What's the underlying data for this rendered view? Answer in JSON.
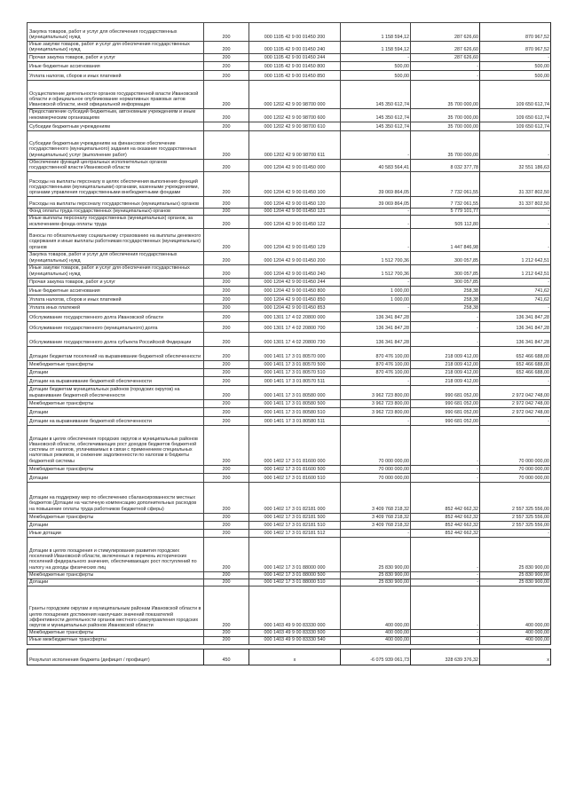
{
  "rows": [
    {
      "name": "Закупка товаров, работ и услуг для обеспечения государственных (муниципальных) нужд",
      "code": "200",
      "bcode": "000 1105 42 9 00 01450 200",
      "approved": "1 158 594,12",
      "executed": "287 626,60",
      "unexecuted": "870 967,52"
    },
    {
      "name": "Иные закупки товаров, работ и услуг для обеспечения государственных (муниципальных) нужд",
      "code": "200",
      "bcode": "000 1105 42 9 00 01450 240",
      "approved": "1 158 594,12",
      "executed": "287 626,60",
      "unexecuted": "870 967,52"
    },
    {
      "name": "Прочая закупка товаров, работ и услуг",
      "code": "200",
      "bcode": "000 1105 42 9 00 01450 244",
      "approved": "-",
      "executed": "287 626,60",
      "unexecuted": "-"
    },
    {
      "name": "Иные бюджетные ассигнования",
      "code": "200",
      "bcode": "000 1105 42 9 00 01450 800",
      "approved": "500,00",
      "executed": "-",
      "unexecuted": "500,00"
    },
    {
      "name": "Уплата налогов, сборов и иных платежей",
      "code": "200",
      "bcode": "000 1105 42 9 00 01450 850",
      "approved": "500,00",
      "executed": "-",
      "unexecuted": "500,00"
    },
    {
      "name": "Осуществление деятельности органов государственной власти Ивановской области и официальное опубликование нормативных правовых актов Ивановской области, иной официальной информации",
      "code": "200",
      "bcode": "000 1202 42 9 00 98700 000",
      "approved": "145 350 612,74",
      "executed": "35 700 000,00",
      "unexecuted": "109 650 612,74"
    },
    {
      "name": "Предоставление субсидий бюджетным, автономным учреждениям и иным некоммерческим организациям",
      "code": "200",
      "bcode": "000 1202 42 9 00 98700 600",
      "approved": "145 350 612,74",
      "executed": "35 700 000,00",
      "unexecuted": "109 650 612,74"
    },
    {
      "name": "Субсидии бюджетным учреждениям",
      "code": "200",
      "bcode": "000 1202 42 9 00 98700 610",
      "approved": "145 350 612,74",
      "executed": "35 700 000,00",
      "unexecuted": "109 650 612,74"
    },
    {
      "name": "Субсидии бюджетным учреждениям на финансовое обеспечение государственного (муниципального) задания на оказание государственных (муниципальных) услуг (выполнение работ)",
      "code": "200",
      "bcode": "000 1202 42 9 00 98700 611",
      "approved": "-",
      "executed": "35 700 000,00",
      "unexecuted": "-"
    },
    {
      "name": "Обеспечение функций центральных исполнительных органов государственной власти Ивановской области",
      "code": "200",
      "bcode": "000 1204 42 9 00 01450 000",
      "approved": "40 583 564,41",
      "executed": "8 032 377,78",
      "unexecuted": "32 551 186,63"
    },
    {
      "name": "Расходы на выплаты персоналу в целях обеспечения выполнения функций государственными (муниципальными) органами, казенными учреждениями, органами управления государственными внебюджетными фондами",
      "code": "200",
      "bcode": "000 1204 42 9 00 01450 100",
      "approved": "39 069 864,05",
      "executed": "7 732 061,55",
      "unexecuted": "31 337 802,50"
    },
    {
      "name": "Расходы на выплаты персоналу государственных (муниципальных) органов",
      "code": "200",
      "bcode": "000 1204 42 9 00 01450 120",
      "approved": "39 069 864,05",
      "executed": "7 732 061,55",
      "unexecuted": "31 337 802,50"
    },
    {
      "name": "Фонд оплаты труда государственных (муниципальных) органов",
      "code": "200",
      "bcode": "000 1204 42 9 00 01450 121",
      "approved": "-",
      "executed": "5 779 101,77",
      "unexecuted": "-"
    },
    {
      "name": "Иные выплаты персоналу государственных (муниципальных) органов, за исключением фонда оплаты труда",
      "code": "200",
      "bcode": "000 1204 42 9 00 01450 122",
      "approved": "-",
      "executed": "505 112,80",
      "unexecuted": "-"
    },
    {
      "name": "Взносы по обязательному социальному страхованию на выплаты денежного содержания и иные выплаты работникам государственных (муниципальных) органов",
      "code": "200",
      "bcode": "000 1204 42 9 00 01450 129",
      "approved": "-",
      "executed": "1 447 846,98",
      "unexecuted": "-"
    },
    {
      "name": "Закупка товаров, работ и услуг для обеспечения государственных (муниципальных) нужд",
      "code": "200",
      "bcode": "000 1204 42 9 00 01450 200",
      "approved": "1 512 700,36",
      "executed": "300 057,85",
      "unexecuted": "1 212 642,51"
    },
    {
      "name": "Иные закупки товаров, работ и услуг для обеспечения государственных (муниципальных) нужд",
      "code": "200",
      "bcode": "000 1204 42 9 00 01450 240",
      "approved": "1 512 700,36",
      "executed": "300 057,85",
      "unexecuted": "1 212 642,51"
    },
    {
      "name": "Прочая закупка товаров, работ и услуг",
      "code": "200",
      "bcode": "000 1204 42 9 00 01450 244",
      "approved": "-",
      "executed": "300 057,85",
      "unexecuted": "-"
    },
    {
      "name": "Иные бюджетные ассигнования",
      "code": "200",
      "bcode": "000 1204 42 9 00 01450 800",
      "approved": "1 000,00",
      "executed": "258,38",
      "unexecuted": "741,62"
    },
    {
      "name": "Уплата налогов, сборов и иных платежей",
      "code": "200",
      "bcode": "000 1204 42 9 00 01450 850",
      "approved": "1 000,00",
      "executed": "258,38",
      "unexecuted": "741,62"
    },
    {
      "name": "Уплата иных платежей",
      "code": "200",
      "bcode": "000 1204 42 9 00 01450 853",
      "approved": "-",
      "executed": "258,38",
      "unexecuted": "-"
    },
    {
      "name": "Обслуживание государственного долга Ивановской области",
      "code": "200",
      "bcode": "000 1301 17 4 02 20800 000",
      "approved": "136 341 847,28",
      "executed": "-",
      "unexecuted": "136 341 847,28"
    },
    {
      "name": "Обслуживание государственного (муниципального) долга",
      "code": "200",
      "bcode": "000 1301 17 4 02 20800 700",
      "approved": "136 341 847,28",
      "executed": "-",
      "unexecuted": "136 341 847,28"
    },
    {
      "name": "Обслуживание государственного долга субъекта Российской Федерации",
      "code": "200",
      "bcode": "000 1301 17 4 02 20800 730",
      "approved": "136 341 847,28",
      "executed": "-",
      "unexecuted": "136 341 847,28"
    },
    {
      "name": "Дотации бюджетам поселений на выравнивание бюджетной обеспеченности",
      "code": "200",
      "bcode": "000 1401 17 3 01 80570 000",
      "approved": "870 476 100,00",
      "executed": "218 009 412,00",
      "unexecuted": "652 466 688,00"
    },
    {
      "name": "Межбюджетные трансферты",
      "code": "200",
      "bcode": "000 1401 17 3 01 80570 500",
      "approved": "870 476 100,00",
      "executed": "218 009 412,00",
      "unexecuted": "652 466 688,00"
    },
    {
      "name": "Дотации",
      "code": "200",
      "bcode": "000 1401 17 3 01 80570 510",
      "approved": "870 476 100,00",
      "executed": "218 009 412,00",
      "unexecuted": "652 466 688,00"
    },
    {
      "name": "Дотации на выравнивание бюджетной обеспеченности",
      "code": "200",
      "bcode": "000 1401 17 3 01 80570 511",
      "approved": "-",
      "executed": "218 009 412,00",
      "unexecuted": "-"
    },
    {
      "name": "Дотации бюджетам муниципальных районов (городских округов) на выравнивание бюджетной обеспеченности",
      "code": "200",
      "bcode": "000 1401 17 3 01 80580 000",
      "approved": "3 962 723 800,00",
      "executed": "990 681 052,00",
      "unexecuted": "2 972 042 748,00"
    },
    {
      "name": "Межбюджетные трансферты",
      "code": "200",
      "bcode": "000 1401 17 3 01 80580 500",
      "approved": "3 962 723 800,00",
      "executed": "990 681 052,00",
      "unexecuted": "2 972 042 748,00"
    },
    {
      "name": "Дотации",
      "code": "200",
      "bcode": "000 1401 17 3 01 80580 510",
      "approved": "3 962 723 800,00",
      "executed": "990 681 052,00",
      "unexecuted": "2 972 042 748,00"
    },
    {
      "name": "Дотации на выравнивание бюджетной обеспеченности",
      "code": "200",
      "bcode": "000 1401 17 3 01 80580 511",
      "approved": "-",
      "executed": "990 681 052,00",
      "unexecuted": "-"
    },
    {
      "name": "Дотации в целях обеспечения городских округов и муниципальных районов Ивановской области, обеспечивающих рост доходов бюджетов бюджетной системы от налогов, уплачиваемых в связи с применением специальных налоговых режимов, и снижение задолженности по налогам в бюджеты бюджетной системы",
      "code": "200",
      "bcode": "000 1402 17 3 01 81600 000",
      "approved": "70 000 000,00",
      "executed": "-",
      "unexecuted": "70 000 000,00"
    },
    {
      "name": "Межбюджетные трансферты",
      "code": "200",
      "bcode": "000 1402 17 3 01 81600 500",
      "approved": "70 000 000,00",
      "executed": "-",
      "unexecuted": "70 000 000,00"
    },
    {
      "name": "Дотации",
      "code": "200",
      "bcode": "000 1402 17 3 01 81600 510",
      "approved": "70 000 000,00",
      "executed": "-",
      "unexecuted": "70 000 000,00"
    },
    {
      "name": "Дотации на поддержку мер по обеспечению сбалансированности местных бюджетов (Дотации на частичную компенсацию дополнительных расходов на повышение оплаты труда работников бюджетной сферы)",
      "code": "200",
      "bcode": "000 1402 17 3 01 82181 000",
      "approved": "3 409 768 218,32",
      "executed": "852 442 662,32",
      "unexecuted": "2 557 325 556,00"
    },
    {
      "name": "Межбюджетные трансферты",
      "code": "200",
      "bcode": "000 1402 17 3 01 82181 500",
      "approved": "3 409 768 218,32",
      "executed": "852 442 662,32",
      "unexecuted": "2 557 325 556,00"
    },
    {
      "name": "Дотации",
      "code": "200",
      "bcode": "000 1402 17 3 01 82181 510",
      "approved": "3 409 768 218,32",
      "executed": "852 442 662,32",
      "unexecuted": "2 557 325 556,00"
    },
    {
      "name": "Иные дотации",
      "code": "200",
      "bcode": "000 1402 17 3 01 82181 512",
      "approved": "-",
      "executed": "852 442 662,32",
      "unexecuted": "-"
    },
    {
      "name": "Дотации в целях поощрения и стимулирования развития городских поселений Ивановской области, включенных в перечень исторических поселений федерального значения, обеспечивающих рост поступлений по налогу на доходы физических лиц",
      "code": "200",
      "bcode": "000 1402 17 3 01 88000 000",
      "approved": "25 830 900,00",
      "executed": "-",
      "unexecuted": "25 830 900,00"
    },
    {
      "name": "Межбюджетные трансферты",
      "code": "200",
      "bcode": "000 1402 17 3 01 88000 500",
      "approved": "25 830 900,00",
      "executed": "-",
      "unexecuted": "25 830 900,00"
    },
    {
      "name": "Дотации",
      "code": "200",
      "bcode": "000 1402 17 3 01 88000 510",
      "approved": "25 830 900,00",
      "executed": "-",
      "unexecuted": "25 830 900,00"
    },
    {
      "name": "Гранты городским округам и муниципальным районам Ивановской области в целях поощрения достижения наилучших значений показателей эффективности деятельности органов местного самоуправления городских округов и муниципальных районов Ивановской области",
      "code": "200",
      "bcode": "000 1403 49 9 00 83330 000",
      "approved": "400 000,00",
      "executed": "-",
      "unexecuted": "400 000,00"
    },
    {
      "name": "Межбюджетные трансферты",
      "code": "200",
      "bcode": "000 1403 49 9 00 83330 500",
      "approved": "400 000,00",
      "executed": "-",
      "unexecuted": "400 000,00"
    },
    {
      "name": "Иные межбюджетные трансферты",
      "code": "200",
      "bcode": "000 1403 49 9 00 83330 540",
      "approved": "400 000,00",
      "executed": "-",
      "unexecuted": "400 000,00"
    }
  ],
  "result": {
    "name": "Результат исполнения бюджета (дефицит / профицит)",
    "code": "450",
    "bcode": "x",
    "approved": "-6 075 939 061,73",
    "executed": "328 639 376,32",
    "unexecuted": "x"
  }
}
